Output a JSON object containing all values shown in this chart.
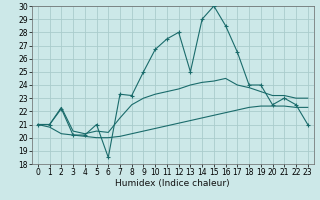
{
  "xlabel": "Humidex (Indice chaleur)",
  "background_color": "#cce8e8",
  "grid_color": "#aacccc",
  "line_color": "#1a6b6b",
  "xlim": [
    -0.5,
    23.5
  ],
  "ylim": [
    18,
    30
  ],
  "xticks": [
    0,
    1,
    2,
    3,
    4,
    5,
    6,
    7,
    8,
    9,
    10,
    11,
    12,
    13,
    14,
    15,
    16,
    17,
    18,
    19,
    20,
    21,
    22,
    23
  ],
  "yticks": [
    18,
    19,
    20,
    21,
    22,
    23,
    24,
    25,
    26,
    27,
    28,
    29,
    30
  ],
  "x": [
    0,
    1,
    2,
    3,
    4,
    5,
    6,
    7,
    8,
    9,
    10,
    11,
    12,
    13,
    14,
    15,
    16,
    17,
    18,
    19,
    20,
    21,
    22,
    23
  ],
  "y_main": [
    21.0,
    21.0,
    22.2,
    20.2,
    20.2,
    21.0,
    18.5,
    23.3,
    23.2,
    25.0,
    26.7,
    27.5,
    28.0,
    25.0,
    29.0,
    30.0,
    28.5,
    26.5,
    24.0,
    24.0,
    22.5,
    23.0,
    22.5,
    21.0
  ],
  "y_low": [
    21.0,
    20.8,
    20.3,
    20.2,
    20.1,
    20.0,
    20.0,
    20.1,
    20.3,
    20.5,
    20.7,
    20.9,
    21.1,
    21.3,
    21.5,
    21.7,
    21.9,
    22.1,
    22.3,
    22.4,
    22.4,
    22.4,
    22.3,
    22.3
  ],
  "y_high": [
    21.0,
    21.0,
    22.3,
    20.5,
    20.3,
    20.5,
    20.4,
    21.5,
    22.5,
    23.0,
    23.3,
    23.5,
    23.7,
    24.0,
    24.2,
    24.3,
    24.5,
    24.0,
    23.8,
    23.5,
    23.2,
    23.2,
    23.0,
    23.0
  ],
  "xlabel_fontsize": 6.5,
  "tick_fontsize": 5.5
}
